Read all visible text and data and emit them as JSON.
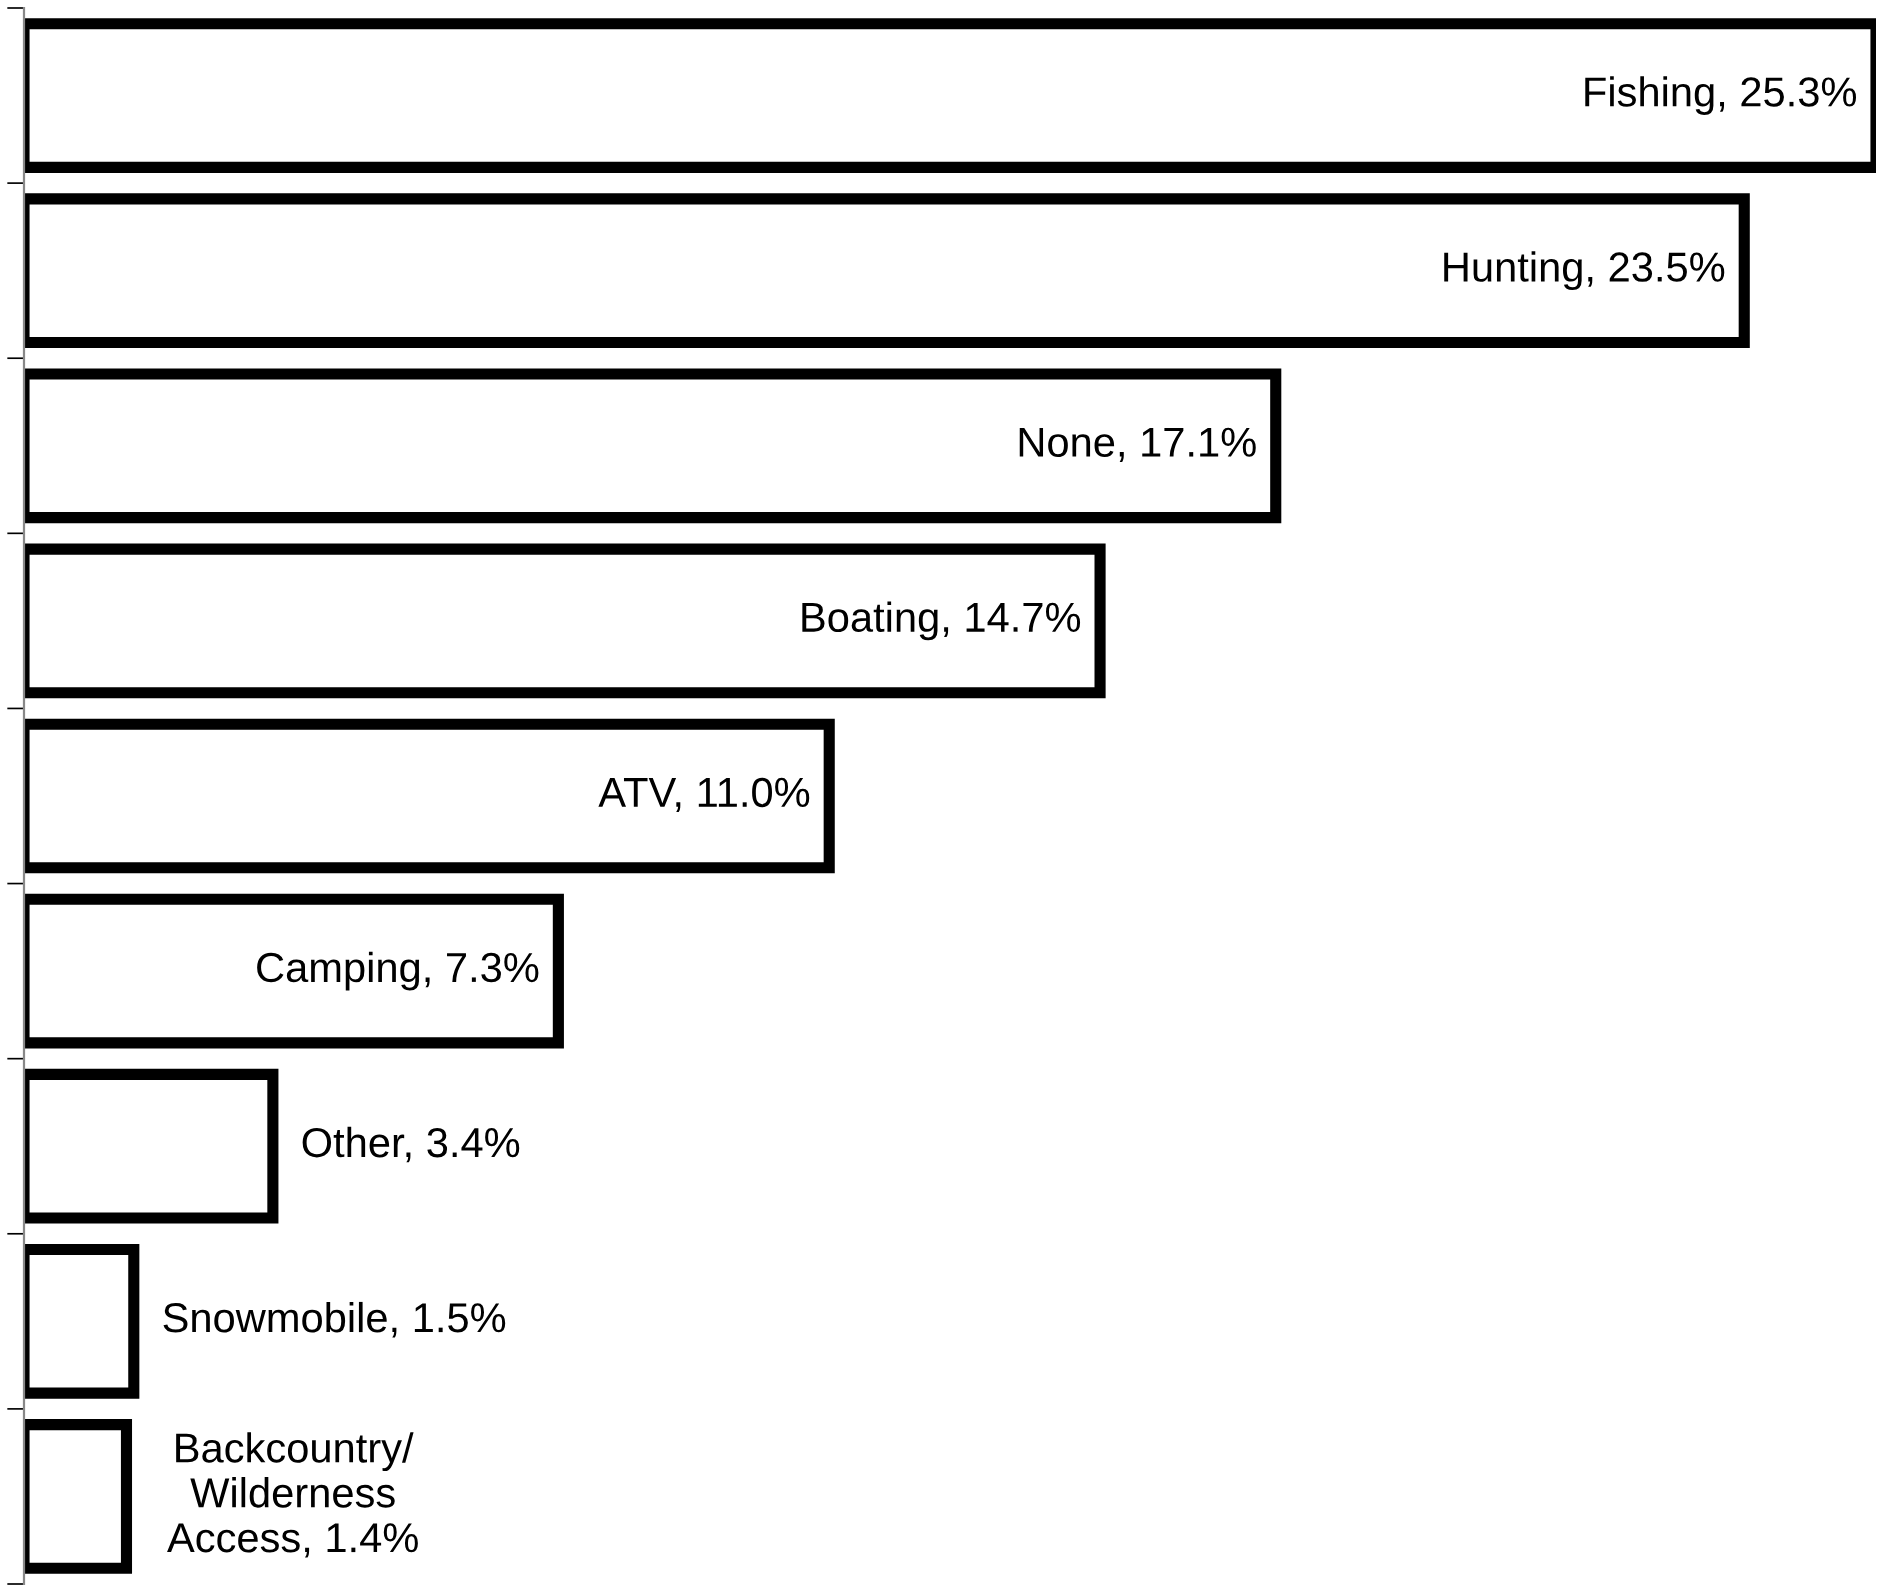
{
  "chart_data": {
    "type": "bar",
    "orientation": "horizontal",
    "categories": [
      null,
      null,
      null,
      null,
      null,
      null,
      null,
      null,
      null
    ],
    "values": [
      25.3,
      23.5,
      17.1,
      14.7,
      11.0,
      7.3,
      3.4,
      1.5,
      1.4
    ],
    "value_labels": [
      "Fishing, 25.3%",
      "Hunting, 23.5%",
      "None, 17.1%",
      "Boating, 14.7%",
      "ATV, 11.0%",
      "Camping, 7.3%",
      "Other, 3.4%",
      "Snowmobile, 1.5%",
      "Backcountry/\nWilderness\nAccess, 1.4%"
    ],
    "color": "#ffffff",
    "xlim": [
      0,
      25.3
    ],
    "grid": false,
    "legend": false
  }
}
